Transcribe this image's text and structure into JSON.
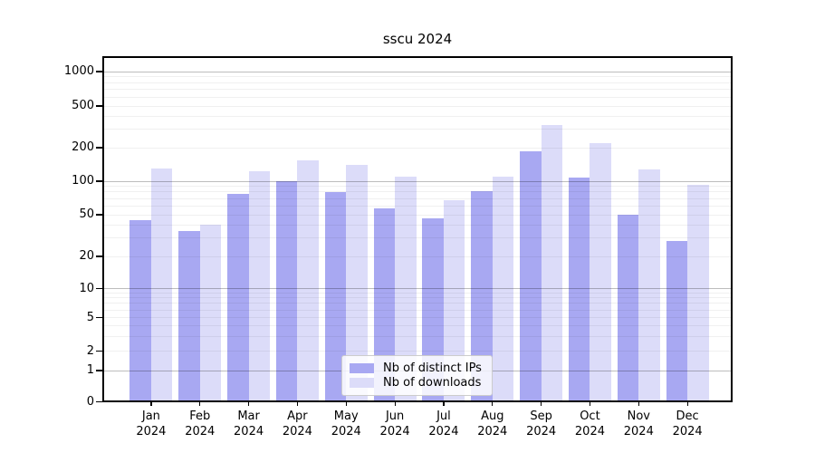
{
  "chart_data": {
    "type": "bar",
    "title": "sscu 2024",
    "categories": [
      "Jan",
      "Feb",
      "Mar",
      "Apr",
      "May",
      "Jun",
      "Jul",
      "Aug",
      "Sep",
      "Oct",
      "Nov",
      "Dec"
    ],
    "x_tick_year_line": "2024",
    "series": [
      {
        "name": "Nb of distinct IPs",
        "color": "#a8a8f2",
        "values": [
          44,
          35,
          77,
          100,
          80,
          57,
          46,
          82,
          186,
          108,
          50,
          28
        ]
      },
      {
        "name": "Nb of downloads",
        "color": "#dcdcf9",
        "values": [
          130,
          40,
          123,
          155,
          140,
          110,
          68,
          110,
          330,
          220,
          127,
          93
        ]
      }
    ],
    "yscale": "symlog",
    "y_ticks": [
      0,
      1,
      2,
      5,
      10,
      20,
      50,
      100,
      200,
      500,
      1000
    ],
    "ylim": [
      0,
      1400
    ],
    "grid": true,
    "legend_loc": "lower center",
    "background_color": "#ffffff",
    "grid_major_ticks": [
      1,
      10,
      100,
      1000
    ]
  }
}
